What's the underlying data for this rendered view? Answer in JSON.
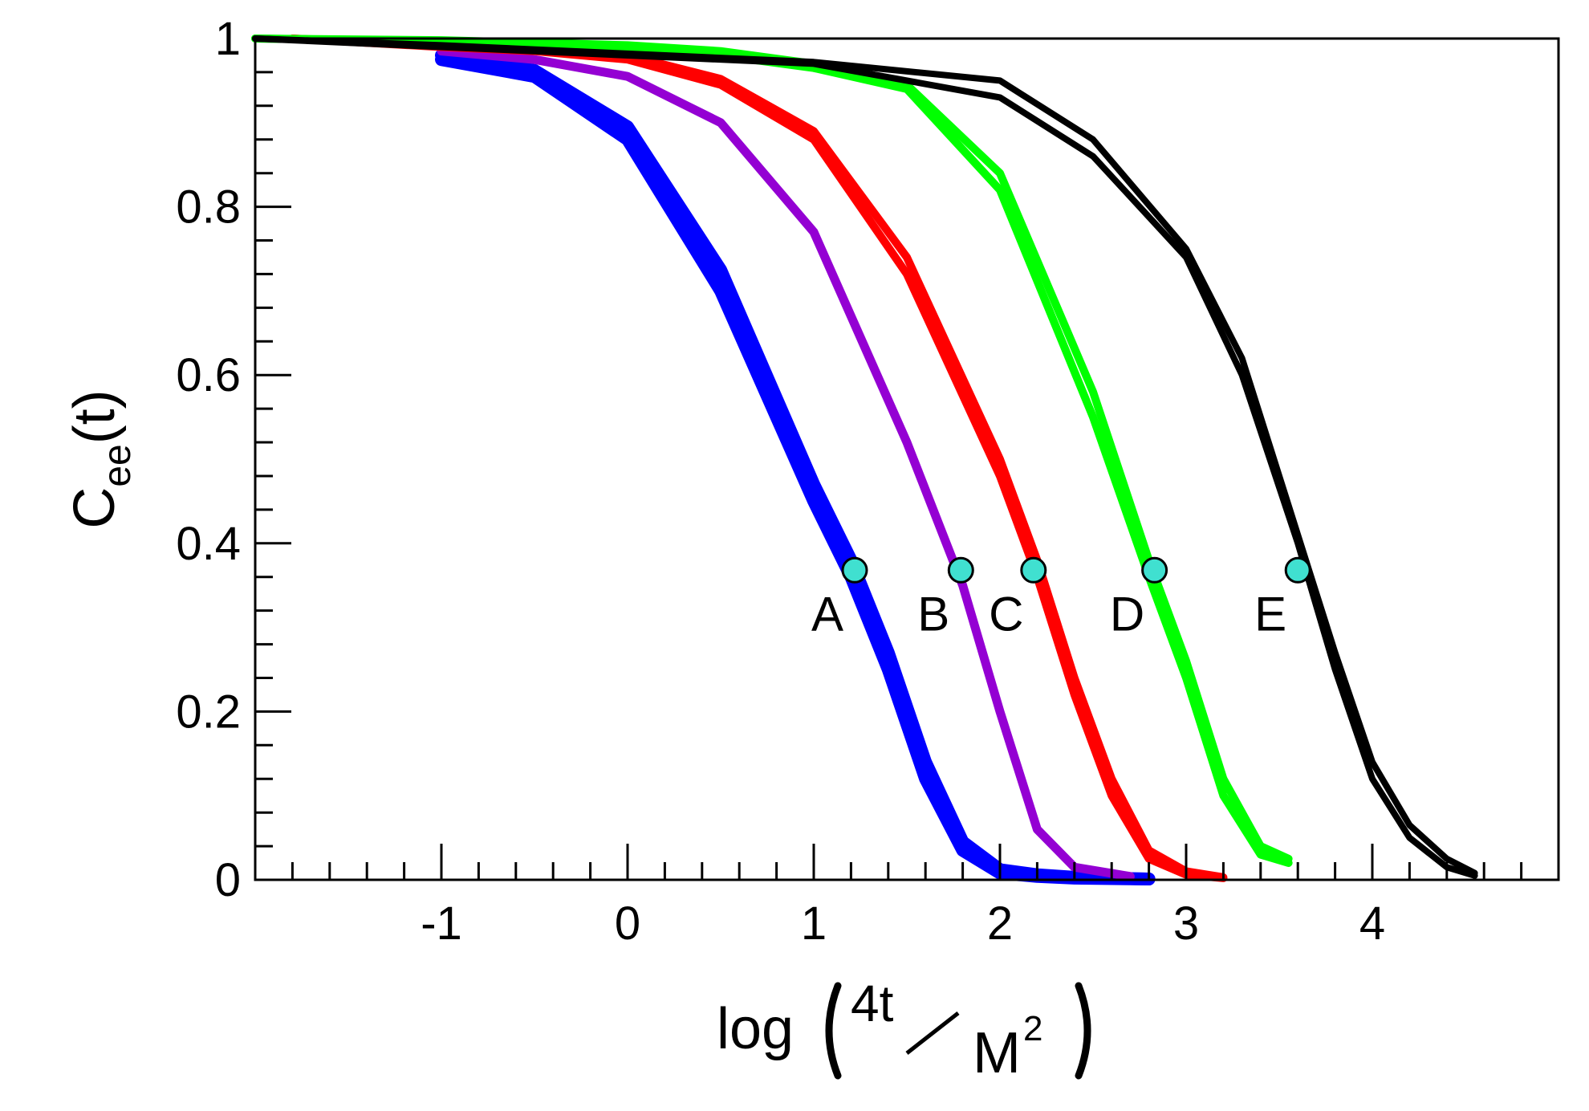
{
  "chart_data": {
    "type": "line",
    "xlim": [
      -2,
      5
    ],
    "ylim": [
      0,
      1
    ],
    "x_ticks": [
      -1,
      0,
      1,
      2,
      3,
      4
    ],
    "x_tick_labels": [
      "-1",
      "0",
      "1",
      "2",
      "3",
      "4"
    ],
    "y_ticks": [
      0,
      0.2,
      0.4,
      0.6,
      0.8,
      1
    ],
    "y_tick_labels": [
      "0",
      "0.2",
      "0.4",
      "0.6",
      "0.8",
      "1"
    ],
    "ylabel": {
      "main": "C",
      "sub": "ee",
      "tail": "(t)"
    },
    "xlabel": {
      "prefix": "log",
      "numerator": "4t",
      "denominator": "M",
      "exponent": "2"
    },
    "grid": false,
    "series": [
      {
        "color": "#0000ff",
        "bundle_width": 16,
        "curves": [
          {
            "x": [
              -1.0,
              -0.5,
              0.0,
              0.5,
              1.0,
              1.2,
              1.4,
              1.6,
              1.8,
              2.0,
              2.2,
              2.4,
              2.8
            ],
            "y": [
              0.975,
              0.955,
              0.88,
              0.7,
              0.45,
              0.36,
              0.25,
              0.12,
              0.035,
              0.008,
              0.004,
              0.002,
              0.001
            ]
          },
          {
            "x": [
              -1.0,
              -0.5,
              0.0,
              0.5,
              1.0,
              1.2,
              1.4,
              1.6,
              1.8,
              2.0,
              2.2,
              2.4,
              2.8
            ],
            "y": [
              0.98,
              0.962,
              0.895,
              0.725,
              0.47,
              0.38,
              0.27,
              0.14,
              0.045,
              0.012,
              0.006,
              0.003,
              0.001
            ]
          }
        ]
      },
      {
        "color": "#9400d3",
        "bundle_width": 11,
        "curves": [
          {
            "x": [
              -1.0,
              -0.5,
              0.0,
              0.5,
              1.0,
              1.5,
              1.8,
              2.0,
              2.2,
              2.4,
              2.7
            ],
            "y": [
              0.985,
              0.975,
              0.955,
              0.9,
              0.77,
              0.52,
              0.35,
              0.2,
              0.06,
              0.015,
              0.004
            ]
          }
        ]
      },
      {
        "color": "#ff0000",
        "bundle_width": 10,
        "curves": [
          {
            "x": [
              -1.8,
              -1.0,
              -0.5,
              0.0,
              0.5,
              1.0,
              1.5,
              2.0,
              2.2,
              2.4,
              2.6,
              2.8,
              3.0,
              3.2
            ],
            "y": [
              1.0,
              0.99,
              0.985,
              0.975,
              0.945,
              0.88,
              0.72,
              0.48,
              0.36,
              0.22,
              0.1,
              0.025,
              0.006,
              0.002
            ]
          },
          {
            "x": [
              -1.8,
              -1.0,
              -0.5,
              0.0,
              0.5,
              1.0,
              1.5,
              2.0,
              2.2,
              2.4,
              2.6,
              2.8,
              3.0,
              3.2
            ],
            "y": [
              1.0,
              0.992,
              0.988,
              0.98,
              0.952,
              0.89,
              0.74,
              0.5,
              0.38,
              0.24,
              0.12,
              0.035,
              0.01,
              0.003
            ]
          }
        ]
      },
      {
        "color": "#00ff00",
        "bundle_width": 10,
        "curves": [
          {
            "x": [
              -2.0,
              -1.0,
              0.0,
              0.5,
              1.0,
              1.5,
              2.0,
              2.5,
              2.8,
              3.0,
              3.2,
              3.4,
              3.55
            ],
            "y": [
              1.0,
              0.997,
              0.99,
              0.98,
              0.965,
              0.94,
              0.82,
              0.55,
              0.36,
              0.24,
              0.1,
              0.03,
              0.02
            ]
          },
          {
            "x": [
              -2.0,
              -1.0,
              0.0,
              0.5,
              1.0,
              1.5,
              2.0,
              2.5,
              2.8,
              3.0,
              3.2,
              3.4,
              3.55
            ],
            "y": [
              1.0,
              0.998,
              0.992,
              0.985,
              0.97,
              0.945,
              0.84,
              0.58,
              0.38,
              0.26,
              0.12,
              0.04,
              0.025
            ]
          }
        ]
      },
      {
        "color": "#000000",
        "bundle_width": 8,
        "curves": [
          {
            "x": [
              -2.0,
              -1.0,
              0.0,
              1.0,
              2.0,
              2.5,
              3.0,
              3.3,
              3.6,
              3.8,
              4.0,
              4.2,
              4.4,
              4.55
            ],
            "y": [
              1.0,
              0.99,
              0.98,
              0.97,
              0.93,
              0.86,
              0.74,
              0.6,
              0.4,
              0.25,
              0.12,
              0.05,
              0.015,
              0.005
            ]
          },
          {
            "x": [
              -2.0,
              -1.0,
              0.0,
              1.0,
              2.0,
              2.5,
              3.0,
              3.3,
              3.6,
              3.8,
              4.0,
              4.2,
              4.4,
              4.55
            ],
            "y": [
              1.0,
              0.992,
              0.982,
              0.972,
              0.95,
              0.88,
              0.75,
              0.62,
              0.41,
              0.27,
              0.14,
              0.065,
              0.025,
              0.008
            ]
          }
        ]
      }
    ],
    "markers": [
      {
        "label": "A",
        "x": 1.22,
        "y": 0.368,
        "fill": "#40e0d0"
      },
      {
        "label": "B",
        "x": 1.79,
        "y": 0.368,
        "fill": "#40e0d0"
      },
      {
        "label": "C",
        "x": 2.18,
        "y": 0.368,
        "fill": "#40e0d0"
      },
      {
        "label": "D",
        "x": 2.83,
        "y": 0.368,
        "fill": "#40e0d0"
      },
      {
        "label": "E",
        "x": 3.6,
        "y": 0.368,
        "fill": "#40e0d0"
      }
    ]
  }
}
